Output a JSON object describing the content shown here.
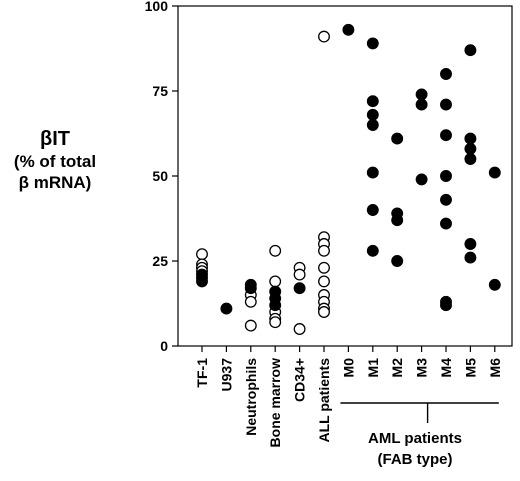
{
  "chart_data": {
    "type": "scatter",
    "ylabel_lines": [
      "βIT",
      "(% of total",
      "β mRNA)"
    ],
    "ylim": [
      0,
      100
    ],
    "yticks": [
      0,
      25,
      50,
      75,
      100
    ],
    "grid": false,
    "categories": [
      "TF-1",
      "U937",
      "Neutrophils",
      "Bone marrow",
      "CD34+",
      "ALL patients",
      "M0",
      "M1",
      "M2",
      "M3",
      "M4",
      "M5",
      "M6"
    ],
    "group_label_lines": [
      "AML patients",
      "(FAB type)"
    ],
    "group_categories": [
      "M0",
      "M1",
      "M2",
      "M3",
      "M4",
      "M5",
      "M6"
    ],
    "points": [
      {
        "category": "TF-1",
        "values": [
          27,
          24,
          23,
          22
        ],
        "fill": "open"
      },
      {
        "category": "TF-1",
        "values": [
          21,
          20,
          19
        ],
        "fill": "filled"
      },
      {
        "category": "U937",
        "values": [
          11
        ],
        "fill": "filled"
      },
      {
        "category": "Neutrophils",
        "values": [
          15,
          13,
          6
        ],
        "fill": "open"
      },
      {
        "category": "Neutrophils",
        "values": [
          18,
          17
        ],
        "fill": "filled"
      },
      {
        "category": "Bone marrow",
        "values": [
          28,
          19,
          10,
          8,
          7
        ],
        "fill": "open"
      },
      {
        "category": "Bone marrow",
        "values": [
          16,
          14,
          12
        ],
        "fill": "filled"
      },
      {
        "category": "CD34+",
        "values": [
          23,
          21,
          5
        ],
        "fill": "open"
      },
      {
        "category": "CD34+",
        "values": [
          17
        ],
        "fill": "filled"
      },
      {
        "category": "ALL patients",
        "values": [
          91,
          32,
          30,
          28,
          23,
          19,
          15,
          13,
          11,
          10
        ],
        "fill": "open"
      },
      {
        "category": "M0",
        "values": [
          93
        ],
        "fill": "filled"
      },
      {
        "category": "M1",
        "values": [
          89,
          72,
          68,
          65,
          51,
          40,
          28
        ],
        "fill": "filled"
      },
      {
        "category": "M2",
        "values": [
          61,
          39,
          37,
          25
        ],
        "fill": "filled"
      },
      {
        "category": "M3",
        "values": [
          74,
          71,
          49
        ],
        "fill": "filled"
      },
      {
        "category": "M4",
        "values": [
          80,
          71,
          62,
          50,
          43,
          36,
          13,
          12
        ],
        "fill": "filled"
      },
      {
        "category": "M5",
        "values": [
          87,
          61,
          58,
          55,
          30,
          26
        ],
        "fill": "filled"
      },
      {
        "category": "M6",
        "values": [
          51,
          18
        ],
        "fill": "filled"
      }
    ]
  }
}
